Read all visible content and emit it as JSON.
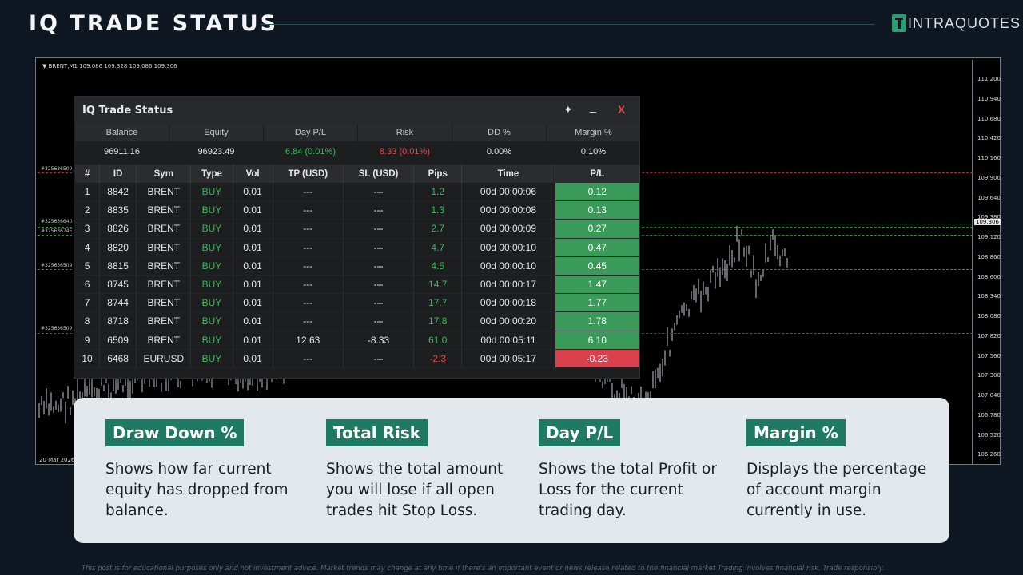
{
  "header": {
    "title": "IQ TRADE STATUS",
    "brand": "INTRAQUOTES"
  },
  "chart": {
    "info": "▼ BRENT,M1  109.086 109.328 109.086 109.306",
    "date": "20 Mar 2026",
    "prices": [
      "111.200",
      "110.940",
      "110.680",
      "110.420",
      "110.160",
      "109.900",
      "109.640",
      "109.380",
      "109.120",
      "108.860",
      "108.600",
      "108.340",
      "108.080",
      "107.820",
      "107.560",
      "107.300",
      "107.040",
      "106.780",
      "106.520",
      "106.260"
    ],
    "current_price": "109.306",
    "order_labels": [
      "#325636509",
      "#325636640",
      "#325636745",
      "#325636509",
      "#325636509"
    ]
  },
  "panel": {
    "title": "IQ Trade Status",
    "summary": [
      {
        "label": "Balance",
        "value": "96911.16",
        "color": "#e6e6e6"
      },
      {
        "label": "Equity",
        "value": "96923.49",
        "color": "#e6e6e6"
      },
      {
        "label": "Day P/L",
        "value": "6.84 (0.01%)",
        "color": "#39b95a"
      },
      {
        "label": "Risk",
        "value": "8.33 (0.01%)",
        "color": "#e04a4a"
      },
      {
        "label": "DD %",
        "value": "0.00%",
        "color": "#e6e6e6"
      },
      {
        "label": "Margin %",
        "value": "0.10%",
        "color": "#e6e6e6"
      }
    ],
    "columns": [
      "#",
      "ID",
      "Sym",
      "Type",
      "Vol",
      "TP (USD)",
      "SL (USD)",
      "Pips",
      "Time",
      "P/L"
    ],
    "rows": [
      {
        "n": "1",
        "id": "8842",
        "sym": "BRENT",
        "type": "BUY",
        "vol": "0.01",
        "tp": "---",
        "sl": "---",
        "pips": "1.2",
        "time": "00d 00:00:06",
        "pl": "0.12",
        "neg": false
      },
      {
        "n": "2",
        "id": "8835",
        "sym": "BRENT",
        "type": "BUY",
        "vol": "0.01",
        "tp": "---",
        "sl": "---",
        "pips": "1.3",
        "time": "00d 00:00:08",
        "pl": "0.13",
        "neg": false
      },
      {
        "n": "3",
        "id": "8826",
        "sym": "BRENT",
        "type": "BUY",
        "vol": "0.01",
        "tp": "---",
        "sl": "---",
        "pips": "2.7",
        "time": "00d 00:00:09",
        "pl": "0.27",
        "neg": false
      },
      {
        "n": "4",
        "id": "8820",
        "sym": "BRENT",
        "type": "BUY",
        "vol": "0.01",
        "tp": "---",
        "sl": "---",
        "pips": "4.7",
        "time": "00d 00:00:10",
        "pl": "0.47",
        "neg": false
      },
      {
        "n": "5",
        "id": "8815",
        "sym": "BRENT",
        "type": "BUY",
        "vol": "0.01",
        "tp": "---",
        "sl": "---",
        "pips": "4.5",
        "time": "00d 00:00:10",
        "pl": "0.45",
        "neg": false
      },
      {
        "n": "6",
        "id": "8745",
        "sym": "BRENT",
        "type": "BUY",
        "vol": "0.01",
        "tp": "---",
        "sl": "---",
        "pips": "14.7",
        "time": "00d 00:00:17",
        "pl": "1.47",
        "neg": false
      },
      {
        "n": "7",
        "id": "8744",
        "sym": "BRENT",
        "type": "BUY",
        "vol": "0.01",
        "tp": "---",
        "sl": "---",
        "pips": "17.7",
        "time": "00d 00:00:18",
        "pl": "1.77",
        "neg": false
      },
      {
        "n": "8",
        "id": "8718",
        "sym": "BRENT",
        "type": "BUY",
        "vol": "0.01",
        "tp": "---",
        "sl": "---",
        "pips": "17.8",
        "time": "00d 00:00:20",
        "pl": "1.78",
        "neg": false
      },
      {
        "n": "9",
        "id": "6509",
        "sym": "BRENT",
        "type": "BUY",
        "vol": "0.01",
        "tp": "12.63",
        "sl": "-8.33",
        "pips": "61.0",
        "time": "00d 00:05:11",
        "pl": "6.10",
        "neg": false
      },
      {
        "n": "10",
        "id": "6468",
        "sym": "EURUSD",
        "type": "BUY",
        "vol": "0.01",
        "tp": "---",
        "sl": "---",
        "pips": "-2.3",
        "time": "00d 00:05:17",
        "pl": "-0.23",
        "neg": true
      }
    ]
  },
  "cards": [
    {
      "title": "Draw Down %",
      "text": "Shows how far current equity has dropped from balance."
    },
    {
      "title": "Total Risk",
      "text": "Shows the total amount you will lose if all open trades hit Stop Loss."
    },
    {
      "title": "Day P/L",
      "text": "Shows the total Profit or Loss for the current trading day."
    },
    {
      "title": "Margin %",
      "text": "Displays the percentage of account margin currently in use."
    }
  ],
  "disclaimer": "This post is for educational purposes only and not investment advice. Market trends may change at any time if there's an important event or news release related to the financial market Trading involves financial risk. Trade responsibly."
}
